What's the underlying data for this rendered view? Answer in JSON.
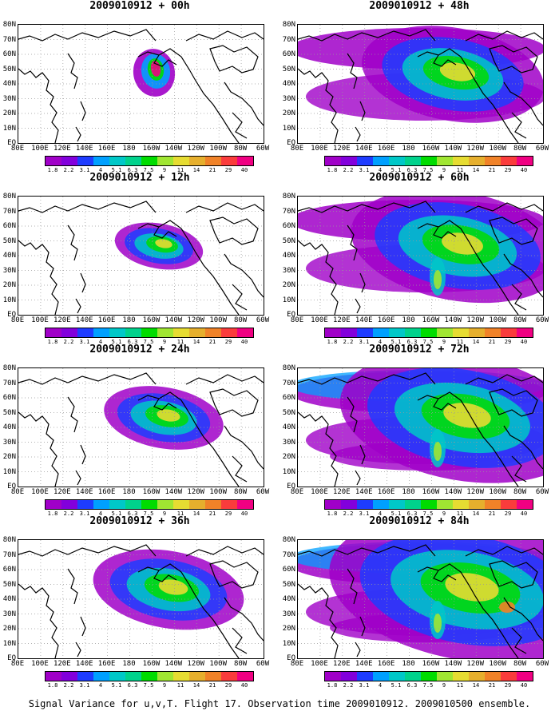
{
  "panels": [
    {
      "title": "2009010912 + 00h",
      "level": 0
    },
    {
      "title": "2009010912 + 12h",
      "level": 1
    },
    {
      "title": "2009010912 + 24h",
      "level": 2
    },
    {
      "title": "2009010912 + 36h",
      "level": 3
    },
    {
      "title": "2009010912 + 48h",
      "level": 4
    },
    {
      "title": "2009010912 + 60h",
      "level": 5
    },
    {
      "title": "2009010912 + 72h",
      "level": 6
    },
    {
      "title": "2009010912 + 84h",
      "level": 7
    }
  ],
  "lat_labels": [
    "80N",
    "70N",
    "60N",
    "50N",
    "40N",
    "30N",
    "20N",
    "10N",
    "EQ"
  ],
  "lon_labels": [
    "80E",
    "100E",
    "120E",
    "140E",
    "160E",
    "180",
    "160W",
    "140W",
    "120W",
    "100W",
    "80W",
    "60W"
  ],
  "colorbar": {
    "labels": [
      "1.8",
      "2.2",
      "3.1",
      "4",
      "5.1",
      "6.3",
      "7.5",
      "9",
      "11",
      "14",
      "21",
      "29",
      "40"
    ],
    "colors": [
      "#a000c8",
      "#8200dc",
      "#1e3cff",
      "#00a0ff",
      "#00c8c8",
      "#00d28c",
      "#00dc00",
      "#a0e632",
      "#e6dc32",
      "#e6af2d",
      "#f08228",
      "#fa3c3c",
      "#f00082"
    ]
  },
  "caption": "Signal Variance for u,v,T. Flight 17. Observation time 2009010912. 2009010500 ensemble."
}
